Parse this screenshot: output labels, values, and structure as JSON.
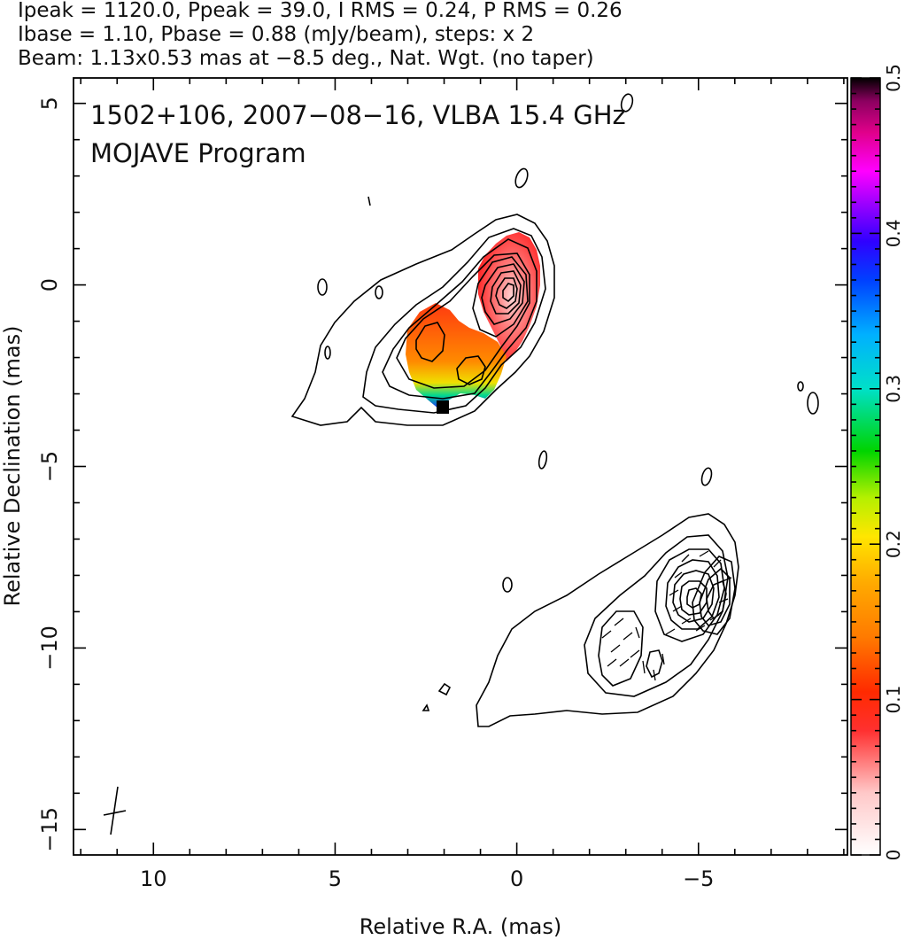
{
  "header": {
    "line1": "Ipeak = 1120.0, Ppeak = 39.0, I RMS = 0.24, P RMS = 0.26",
    "line2": "Ibase = 1.10, Pbase = 0.88 (mJy/beam), steps: x 2",
    "line3": "Beam: 1.13x0.53 mas at −8.5 deg., Nat. Wgt. (no taper)"
  },
  "annotations": {
    "source": "1502+106, 2007−08−16, VLBA 15.4 GHz",
    "program": "MOJAVE Program"
  },
  "chart_data": {
    "type": "contour",
    "xlabel": "Relative R.A. (mas)",
    "ylabel": "Relative Declination (mas)",
    "xlim": [
      12.2,
      -9.1
    ],
    "ylim": [
      -15.7,
      5.7
    ],
    "xticks": [
      {
        "value": 10,
        "label": "10"
      },
      {
        "value": 5,
        "label": "5"
      },
      {
        "value": 0,
        "label": "0"
      },
      {
        "value": -5,
        "label": "−5"
      }
    ],
    "yticks": [
      {
        "value": 5,
        "label": "5"
      },
      {
        "value": 0,
        "label": "0"
      },
      {
        "value": -5,
        "label": "−5"
      },
      {
        "value": -10,
        "label": "−10"
      },
      {
        "value": -15,
        "label": "−15"
      }
    ],
    "colorbar": {
      "min": 0,
      "max": 0.5,
      "ticks": [
        {
          "value": 0,
          "label": "0"
        },
        {
          "value": 0.1,
          "label": "0.1"
        },
        {
          "value": 0.2,
          "label": "0.2"
        },
        {
          "value": 0.3,
          "label": "0.3"
        },
        {
          "value": 0.4,
          "label": "0.4"
        },
        {
          "value": 0.5,
          "label": "0.5"
        }
      ]
    },
    "colors": {
      "contour": "#000000",
      "frame": "#000000"
    }
  }
}
